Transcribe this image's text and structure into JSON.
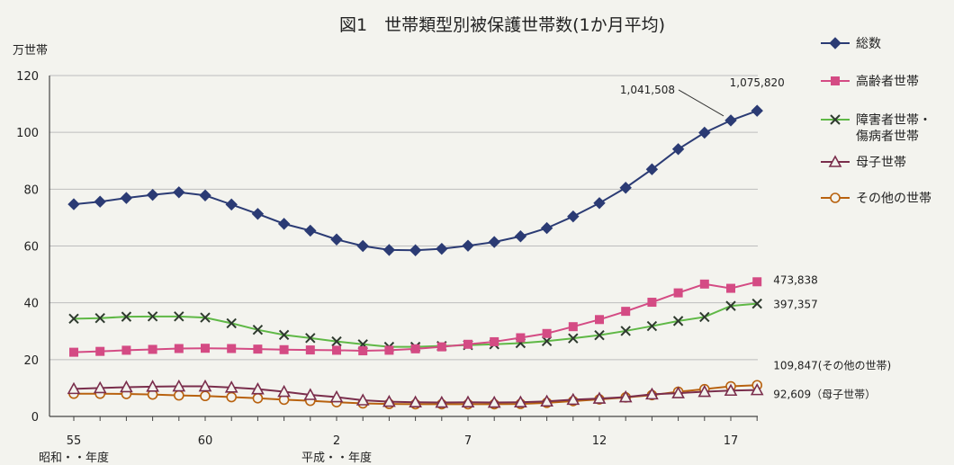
{
  "chart_data": {
    "type": "line",
    "title": "図1　世帯類型別被保護世帯数(1か月平均)",
    "ylabel": "万世帯",
    "ylim": [
      0,
      120
    ],
    "yticks": [
      0,
      20,
      40,
      60,
      80,
      100,
      120
    ],
    "x_tick_labels": [
      {
        "index": 0,
        "label": "55"
      },
      {
        "index": 5,
        "label": "60"
      },
      {
        "index": 10,
        "label": "2"
      },
      {
        "index": 15,
        "label": "7"
      },
      {
        "index": 20,
        "label": "12"
      },
      {
        "index": 25,
        "label": "17"
      }
    ],
    "x_axis_notes": [
      {
        "index": 0,
        "label": "昭和・・年度"
      },
      {
        "index": 10,
        "label": "平成・・年度"
      }
    ],
    "grid": true,
    "legend_position": "right",
    "series": [
      {
        "name": "総数",
        "marker": "diamond",
        "color": "#2b3b74",
        "values": [
          74.7,
          75.6,
          76.9,
          78.0,
          78.9,
          77.8,
          74.6,
          71.3,
          67.8,
          65.4,
          62.3,
          60.0,
          58.6,
          58.5,
          59.0,
          60.1,
          61.4,
          63.4,
          66.3,
          70.4,
          75.1,
          80.5,
          87.0,
          94.1,
          99.9,
          104.2,
          107.6
        ]
      },
      {
        "name": "高齢者世帯",
        "marker": "square",
        "color": "#d44b84",
        "values": [
          22.6,
          22.9,
          23.3,
          23.6,
          23.9,
          24.0,
          23.9,
          23.7,
          23.5,
          23.4,
          23.3,
          23.1,
          23.3,
          23.8,
          24.5,
          25.4,
          26.3,
          27.7,
          29.2,
          31.6,
          34.1,
          37.0,
          40.2,
          43.5,
          46.6,
          45.1,
          47.4
        ]
      },
      {
        "name": "障害者世帯・傷病者世帯",
        "marker": "x",
        "color": "#2e3a2e",
        "line_color": "#5fb846",
        "values": [
          34.4,
          34.6,
          35.1,
          35.2,
          35.2,
          34.8,
          32.8,
          30.5,
          28.7,
          27.6,
          26.4,
          25.4,
          24.5,
          24.5,
          24.8,
          25.1,
          25.4,
          25.8,
          26.5,
          27.5,
          28.6,
          30.1,
          31.8,
          33.6,
          35.0,
          38.9,
          39.7
        ]
      },
      {
        "name": "母子世帯",
        "marker": "triangle",
        "color": "#7a2e4c",
        "values": [
          9.7,
          10.0,
          10.3,
          10.5,
          10.6,
          10.6,
          10.2,
          9.6,
          8.7,
          7.6,
          6.8,
          5.7,
          5.2,
          5.0,
          4.9,
          5.0,
          4.9,
          5.0,
          5.3,
          5.9,
          6.3,
          6.8,
          7.8,
          8.2,
          8.7,
          9.1,
          9.3
        ]
      },
      {
        "name": "その他の世帯",
        "marker": "circle",
        "color": "#b8620f",
        "values": [
          8.0,
          8.0,
          7.9,
          7.7,
          7.4,
          7.2,
          6.8,
          6.4,
          5.9,
          5.5,
          5.0,
          4.6,
          4.4,
          4.3,
          4.3,
          4.3,
          4.3,
          4.4,
          4.8,
          5.4,
          6.0,
          6.7,
          7.5,
          8.7,
          9.6,
          10.6,
          11.0
        ]
      }
    ],
    "annotations": [
      {
        "text": "1,041,508",
        "series": 0,
        "index": 25
      },
      {
        "text": "1,075,820",
        "series": 0,
        "index": 26
      },
      {
        "text": "473,838",
        "series": 1,
        "index": 26
      },
      {
        "text": "397,357",
        "series": 2,
        "index": 26
      },
      {
        "text": "109,847(その他の世帯)",
        "series": 4,
        "index": 26
      },
      {
        "text": "92,609（母子世帯）",
        "series": 3,
        "index": 26
      }
    ]
  }
}
